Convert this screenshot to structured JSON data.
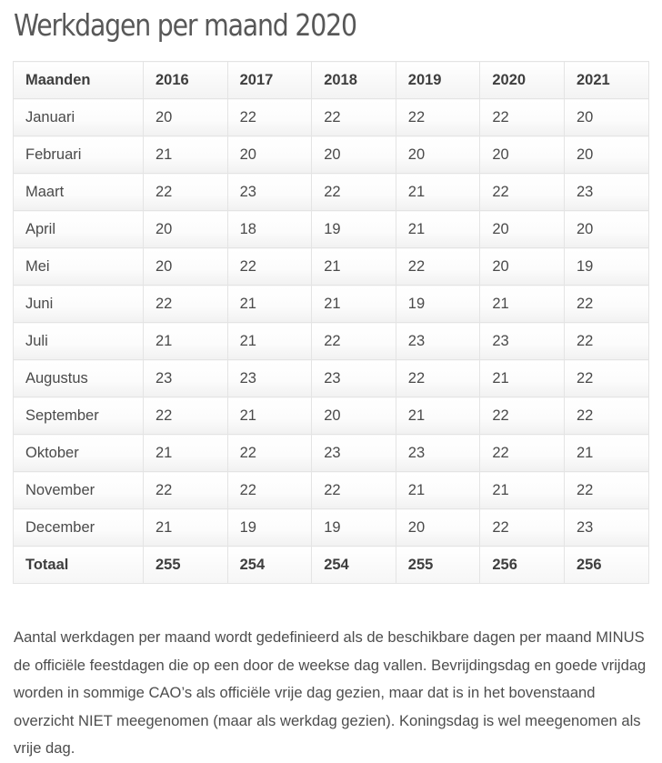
{
  "title": "Werkdagen per maand 2020",
  "table": {
    "headers": [
      "Maanden",
      "2016",
      "2017",
      "2018",
      "2019",
      "2020",
      "2021"
    ],
    "rows": [
      [
        "Januari",
        "20",
        "22",
        "22",
        "22",
        "22",
        "20"
      ],
      [
        "Februari",
        "21",
        "20",
        "20",
        "20",
        "20",
        "20"
      ],
      [
        "Maart",
        "22",
        "23",
        "22",
        "21",
        "22",
        "23"
      ],
      [
        "April",
        "20",
        "18",
        "19",
        "21",
        "20",
        "20"
      ],
      [
        "Mei",
        "20",
        "22",
        "21",
        "22",
        "20",
        "19"
      ],
      [
        "Juni",
        "22",
        "21",
        "21",
        "19",
        "21",
        "22"
      ],
      [
        "Juli",
        "21",
        "21",
        "22",
        "23",
        "23",
        "22"
      ],
      [
        "Augustus",
        "23",
        "23",
        "23",
        "22",
        "21",
        "22"
      ],
      [
        "September",
        "22",
        "21",
        "20",
        "21",
        "22",
        "22"
      ],
      [
        "Oktober",
        "21",
        "22",
        "23",
        "23",
        "22",
        "21"
      ],
      [
        "November",
        "22",
        "22",
        "22",
        "21",
        "21",
        "22"
      ],
      [
        "December",
        "21",
        "19",
        "19",
        "20",
        "22",
        "23"
      ]
    ],
    "total": [
      "Totaal",
      "255",
      "254",
      "254",
      "255",
      "256",
      "256"
    ]
  },
  "description": "Aantal werkdagen per maand wordt gedefinieerd als de beschikbare dagen per maand MINUS de officiële feestdagen die op een door de weekse dag vallen.  Bevrijdingsdag en goede vrijdag worden in sommige CAO’s als officiële vrije dag gezien, maar dat is in het bovenstaand overzicht NIET meegenomen (maar als werkdag gezien). Koningsdag is wel meegenomen als vrije dag."
}
